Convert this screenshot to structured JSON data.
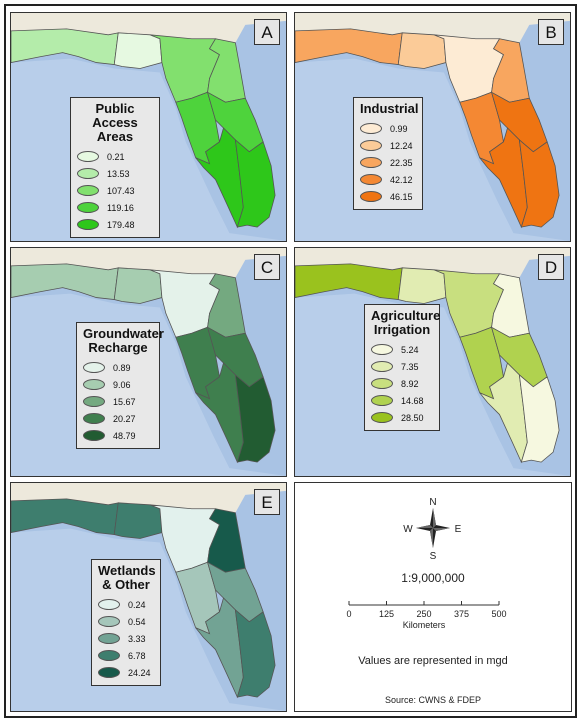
{
  "panels": [
    {
      "id": "A",
      "letter": "A",
      "title": "Public Access Areas",
      "colors": [
        "#e6f9e1",
        "#b4ecaa",
        "#82e06e",
        "#4ed33c",
        "#2ec71a"
      ],
      "items": [
        "0.21",
        "13.53",
        "107.43",
        "119.16",
        "179.48"
      ],
      "region_classes": [
        1,
        0,
        2,
        2,
        3,
        3,
        4,
        4
      ]
    },
    {
      "id": "B",
      "letter": "B",
      "title": "Industrial",
      "colors": [
        "#fdebd4",
        "#fbcb98",
        "#f8a65f",
        "#f48833",
        "#ef7412"
      ],
      "items": [
        "0.99",
        "12.24",
        "22.35",
        "42.12",
        "46.15"
      ],
      "region_classes": [
        2,
        1,
        0,
        2,
        3,
        4,
        4,
        4
      ]
    },
    {
      "id": "C",
      "letter": "C",
      "title": "Groundwater Recharge",
      "colors": [
        "#e4f2ea",
        "#a6cdb0",
        "#74a980",
        "#3f7f4e",
        "#225c32"
      ],
      "items": [
        "0.89",
        "9.06",
        "15.67",
        "20.27",
        "48.79"
      ],
      "region_classes": [
        1,
        1,
        0,
        2,
        3,
        3,
        3,
        4
      ]
    },
    {
      "id": "D",
      "letter": "D",
      "title": "Agriculture Irrigation",
      "colors": [
        "#f6f8e0",
        "#e1ecb2",
        "#c8df7f",
        "#b0d24f",
        "#9ac21e"
      ],
      "items": [
        "5.24",
        "7.35",
        "8.92",
        "14.68",
        "28.50"
      ],
      "region_classes": [
        4,
        1,
        2,
        0,
        3,
        3,
        1,
        0
      ]
    },
    {
      "id": "E",
      "letter": "E",
      "title": "Wetlands & Other",
      "colors": [
        "#e2f1ed",
        "#a5c6ba",
        "#72a394",
        "#3e7e6e",
        "#175a4b"
      ],
      "items": [
        "0.24",
        "0.54",
        "3.33",
        "6.78",
        "24.24"
      ],
      "region_classes": [
        3,
        3,
        0,
        4,
        1,
        2,
        2,
        3
      ]
    }
  ],
  "compass": {
    "n": "N",
    "s": "S",
    "e": "E",
    "w": "W"
  },
  "scale_ratio": "1:9,000,000",
  "scale_ticks": [
    "0",
    "125",
    "250",
    "375",
    "500"
  ],
  "scale_unit": "Kilometers",
  "values_note": "Values are represented in mgd",
  "source": "Source: CWNS & FDEP",
  "colors": {
    "ocean": "#a9c3e4",
    "land_bg": "#ede9dc",
    "legend_bg": "#e8e8e8"
  }
}
